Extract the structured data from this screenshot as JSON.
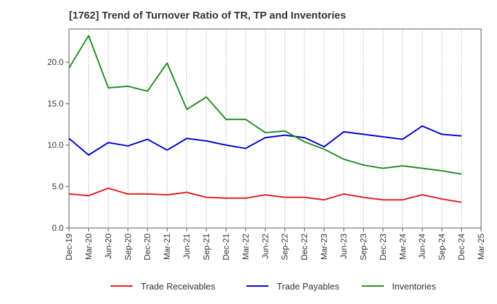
{
  "chart_data": {
    "type": "line",
    "title": "[1762]  Trend of Turnover Ratio of TR, TP and Inventories",
    "xlabel": "",
    "ylabel": "",
    "ylim": [
      0,
      24
    ],
    "yticks": [
      0.0,
      5.0,
      10.0,
      15.0,
      20.0
    ],
    "ytick_labels": [
      "0.0",
      "5.0",
      "10.0",
      "15.0",
      "20.0"
    ],
    "x": [
      "Dec-19",
      "Mar-20",
      "Jun-20",
      "Sep-20",
      "Dec-20",
      "Mar-21",
      "Jun-21",
      "Sep-21",
      "Dec-21",
      "Mar-22",
      "Jun-22",
      "Sep-22",
      "Dec-22",
      "Mar-23",
      "Jun-23",
      "Sep-23",
      "Dec-23",
      "Mar-24",
      "Jun-24",
      "Sep-24",
      "Dec-24",
      "Mar-25"
    ],
    "grid": "vertical-dotted",
    "legend_position": "bottom",
    "series": [
      {
        "name": "Trade Receivables",
        "color": "#e31a1c",
        "values": [
          4.1,
          3.9,
          4.8,
          4.1,
          4.1,
          4.0,
          4.3,
          3.7,
          3.6,
          3.6,
          4.0,
          3.7,
          3.7,
          3.4,
          4.1,
          3.7,
          3.4,
          3.4,
          4.0,
          3.5,
          3.1,
          null
        ]
      },
      {
        "name": "Trade Payables",
        "color": "#0000cc",
        "values": [
          10.8,
          8.8,
          10.3,
          9.9,
          10.7,
          9.4,
          10.8,
          10.5,
          10.0,
          9.6,
          10.9,
          11.2,
          10.9,
          9.8,
          11.6,
          11.3,
          11.0,
          10.7,
          12.3,
          11.3,
          11.1,
          null
        ]
      },
      {
        "name": "Inventories",
        "color": "#228b22",
        "values": [
          19.3,
          23.2,
          16.9,
          17.1,
          16.5,
          19.9,
          14.3,
          15.8,
          13.1,
          13.1,
          11.5,
          11.7,
          10.4,
          9.5,
          8.3,
          7.6,
          7.2,
          7.5,
          7.2,
          6.9,
          6.5,
          null
        ]
      }
    ]
  }
}
